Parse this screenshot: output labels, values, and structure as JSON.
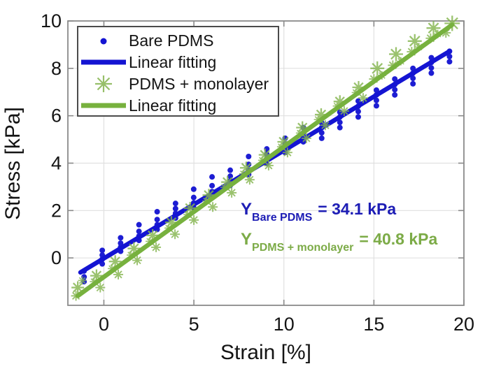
{
  "figure": {
    "background": "#ffffff"
  },
  "legend": {
    "position": "top-left",
    "items": [
      {
        "label": "Bare PDMS",
        "marker": "dot",
        "color": "#1414d2"
      },
      {
        "label": "Linear fitting",
        "marker": "line",
        "color": "#1414d2"
      },
      {
        "label": "PDMS + monolayer",
        "marker": "asterisk",
        "color": "#85b54f"
      },
      {
        "label": "Linear fitting",
        "marker": "line",
        "color": "#77b13e"
      }
    ]
  },
  "annotations": [
    {
      "symbol": "Y",
      "subscript": "Bare PDMS",
      "value": "= 34.1 kPa",
      "color": "#1d1db5"
    },
    {
      "symbol": "Y",
      "subscript": "PDMS + monolayer",
      "value": "= 40.8 kPa",
      "color": "#7cab47"
    }
  ],
  "chart_data": {
    "type": "scatter",
    "title": "",
    "xlabel": "Strain [%]",
    "ylabel": "Stress [kPa]",
    "xlim": [
      -2,
      20
    ],
    "ylim": [
      -2,
      10
    ],
    "x_ticks": [
      0,
      5,
      10,
      15,
      20
    ],
    "y_ticks": [
      0,
      2,
      4,
      6,
      8,
      10
    ],
    "grid": true,
    "legend_position": "top-left",
    "theme": {
      "grid": "#e0e0e0",
      "axis": "#8a8a8a",
      "text": "#141414"
    },
    "series": [
      {
        "name": "Bare PDMS",
        "marker": "dot",
        "color": "#1414d2",
        "points": [
          [
            -1.1,
            -1.0
          ],
          [
            -1.1,
            -0.8
          ],
          [
            -1.1,
            -0.55
          ],
          [
            -0.09,
            -0.25
          ],
          [
            -0.09,
            -0.05
          ],
          [
            -0.09,
            0.12
          ],
          [
            -0.09,
            0.32
          ],
          [
            0.93,
            0.28
          ],
          [
            0.93,
            0.45
          ],
          [
            0.93,
            0.62
          ],
          [
            0.93,
            0.85
          ],
          [
            1.95,
            0.74
          ],
          [
            1.95,
            0.92
          ],
          [
            1.95,
            1.12
          ],
          [
            1.95,
            1.4
          ],
          [
            2.96,
            1.2
          ],
          [
            2.96,
            1.4
          ],
          [
            2.96,
            1.62
          ],
          [
            2.96,
            1.95
          ],
          [
            3.98,
            1.68
          ],
          [
            3.98,
            1.88
          ],
          [
            3.98,
            2.08
          ],
          [
            3.98,
            2.3
          ],
          [
            4.99,
            2.12
          ],
          [
            4.99,
            2.32
          ],
          [
            4.99,
            2.55
          ],
          [
            4.99,
            2.9
          ],
          [
            6.01,
            2.6
          ],
          [
            6.01,
            2.8
          ],
          [
            6.01,
            3.05
          ],
          [
            6.01,
            3.42
          ],
          [
            7.02,
            3.06
          ],
          [
            7.02,
            3.25
          ],
          [
            7.02,
            3.45
          ],
          [
            7.02,
            3.7
          ],
          [
            8.04,
            3.52
          ],
          [
            8.04,
            3.72
          ],
          [
            8.04,
            3.95
          ],
          [
            8.04,
            4.28
          ],
          [
            9.05,
            3.98
          ],
          [
            9.05,
            4.18
          ],
          [
            9.05,
            4.38
          ],
          [
            9.05,
            4.6
          ],
          [
            10.07,
            4.45
          ],
          [
            10.07,
            4.62
          ],
          [
            10.07,
            4.82
          ],
          [
            10.07,
            5.05
          ],
          [
            11.08,
            4.9
          ],
          [
            11.08,
            5.08
          ],
          [
            11.08,
            5.28
          ],
          [
            11.08,
            5.5
          ],
          [
            12.1,
            5.05
          ],
          [
            12.1,
            5.28
          ],
          [
            12.1,
            5.5
          ],
          [
            12.1,
            5.7
          ],
          [
            13.11,
            5.5
          ],
          [
            13.11,
            5.72
          ],
          [
            13.11,
            5.95
          ],
          [
            13.11,
            6.15
          ],
          [
            14.13,
            5.95
          ],
          [
            14.13,
            6.18
          ],
          [
            14.13,
            6.4
          ],
          [
            14.13,
            6.62
          ],
          [
            15.14,
            6.42
          ],
          [
            15.14,
            6.65
          ],
          [
            15.14,
            6.88
          ],
          [
            15.14,
            7.08
          ],
          [
            16.16,
            6.88
          ],
          [
            16.16,
            7.1
          ],
          [
            16.16,
            7.32
          ],
          [
            16.16,
            7.55
          ],
          [
            17.17,
            7.35
          ],
          [
            17.17,
            7.58
          ],
          [
            17.17,
            7.8
          ],
          [
            17.17,
            8.0
          ],
          [
            18.19,
            7.8
          ],
          [
            18.19,
            8.02
          ],
          [
            18.19,
            8.25
          ],
          [
            18.19,
            8.45
          ],
          [
            19.2,
            8.28
          ],
          [
            19.2,
            8.5
          ],
          [
            19.2,
            8.72
          ]
        ]
      },
      {
        "name": "Bare PDMS linear fitting",
        "type": "fit-line",
        "color": "#1414d2",
        "endpoints": [
          [
            -1.3,
            -0.61
          ],
          [
            19.2,
            8.72
          ]
        ],
        "modulus_label": "34.1 kPa"
      },
      {
        "name": "PDMS + monolayer",
        "marker": "asterisk",
        "color": "#85b54f",
        "points": [
          [
            -1.45,
            -1.25,
            9
          ],
          [
            -1.2,
            -0.95,
            6
          ],
          [
            -1.55,
            -1.6,
            7
          ],
          [
            -0.41,
            -0.75,
            9
          ],
          [
            -0.2,
            -1.25,
            7
          ],
          [
            -0.55,
            -1.0,
            6
          ],
          [
            0.63,
            -0.15,
            9
          ],
          [
            0.8,
            -0.7,
            7
          ],
          [
            0.45,
            -0.45,
            6
          ],
          [
            1.67,
            0.4,
            9
          ],
          [
            1.85,
            -0.1,
            7
          ],
          [
            1.5,
            0.12,
            6
          ],
          [
            2.71,
            0.95,
            9
          ],
          [
            2.9,
            0.45,
            7
          ],
          [
            2.55,
            0.7,
            6
          ],
          [
            3.75,
            1.5,
            9
          ],
          [
            3.95,
            1.0,
            7
          ],
          [
            3.6,
            1.26,
            6
          ],
          [
            4.79,
            2.1,
            9
          ],
          [
            5.0,
            1.6,
            7
          ],
          [
            4.65,
            1.83,
            6
          ],
          [
            5.83,
            2.65,
            9
          ],
          [
            6.05,
            2.15,
            7
          ],
          [
            5.7,
            2.4,
            6
          ],
          [
            6.87,
            3.2,
            9
          ],
          [
            7.1,
            2.75,
            7
          ],
          [
            6.7,
            2.98,
            6
          ],
          [
            7.91,
            3.8,
            9
          ],
          [
            8.1,
            3.3,
            7
          ],
          [
            7.75,
            3.55,
            6
          ],
          [
            8.95,
            4.35,
            9
          ],
          [
            9.15,
            3.9,
            7
          ],
          [
            8.8,
            4.12,
            6
          ],
          [
            9.99,
            4.9,
            9
          ],
          [
            10.2,
            4.45,
            7
          ],
          [
            9.85,
            4.69,
            6
          ],
          [
            11.03,
            5.5,
            9
          ],
          [
            11.25,
            5.05,
            7
          ],
          [
            10.9,
            5.27,
            6
          ],
          [
            12.07,
            6.05,
            9
          ],
          [
            12.3,
            5.6,
            7
          ],
          [
            11.9,
            5.84,
            6
          ],
          [
            13.11,
            6.6,
            9
          ],
          [
            13.35,
            6.2,
            7
          ],
          [
            12.95,
            6.41,
            6
          ],
          [
            14.15,
            7.2,
            9
          ],
          [
            14.4,
            6.75,
            7
          ],
          [
            14.0,
            6.98,
            6
          ],
          [
            15.19,
            8.0,
            10
          ],
          [
            15.0,
            7.55,
            7
          ],
          [
            15.45,
            7.7,
            6
          ],
          [
            16.23,
            8.6,
            10
          ],
          [
            16.05,
            8.13,
            7
          ],
          [
            16.5,
            8.3,
            6
          ],
          [
            17.27,
            9.15,
            10
          ],
          [
            17.1,
            8.7,
            7
          ],
          [
            17.5,
            8.9,
            6
          ],
          [
            18.31,
            9.7,
            10
          ],
          [
            18.15,
            9.27,
            7
          ],
          [
            18.55,
            9.45,
            6
          ],
          [
            19.35,
            9.9,
            11
          ],
          [
            19.0,
            9.5,
            7
          ]
        ]
      },
      {
        "name": "PDMS + monolayer linear fitting",
        "type": "fit-line",
        "color": "#77b13e",
        "endpoints": [
          [
            -1.45,
            -1.6
          ],
          [
            19.35,
            9.84
          ]
        ],
        "modulus_label": "40.8 kPa"
      }
    ]
  }
}
